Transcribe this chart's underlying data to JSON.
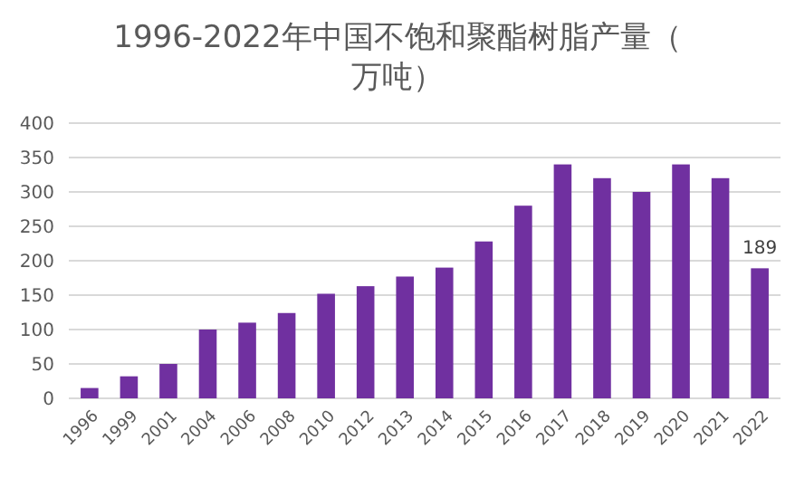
{
  "chart_data": {
    "type": "bar",
    "title": "1996-2022年中国不饱和聚酯树脂产量（万吨）",
    "categories": [
      "1996",
      "1999",
      "2001",
      "2004",
      "2006",
      "2008",
      "2010",
      "2012",
      "2013",
      "2014",
      "2015",
      "2016",
      "2017",
      "2018",
      "2019",
      "2020",
      "2021",
      "2022"
    ],
    "values": [
      15,
      32,
      50,
      100,
      110,
      124,
      152,
      163,
      177,
      190,
      228,
      280,
      340,
      320,
      300,
      340,
      320,
      189
    ],
    "value_labels": [
      null,
      null,
      null,
      null,
      null,
      null,
      null,
      null,
      null,
      null,
      null,
      null,
      null,
      null,
      null,
      null,
      null,
      "189"
    ],
    "color": "#7030a0",
    "ylim": [
      0,
      400
    ],
    "yticks": [
      0,
      50,
      100,
      150,
      200,
      250,
      300,
      350,
      400
    ],
    "grid": "y"
  }
}
